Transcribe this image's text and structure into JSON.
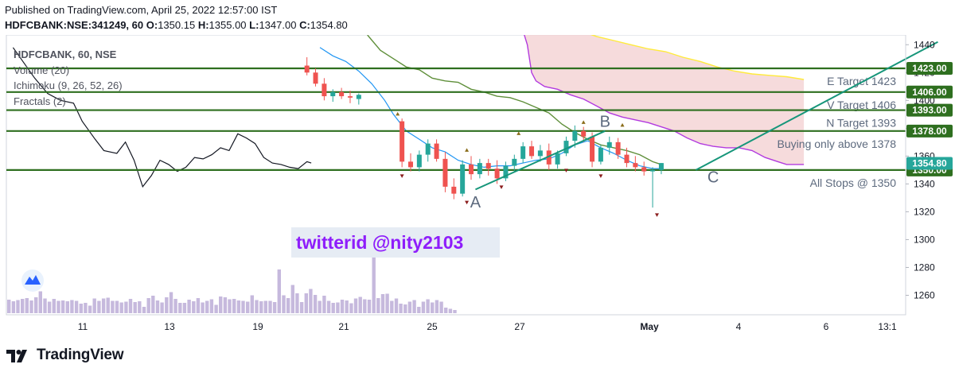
{
  "header": {
    "published": "Published on TradingView.com, April 25, 2022 12:57:00 IST",
    "symbol": "HDFCBANK:NSE:341249, 60",
    "o_label": "O:",
    "o": "1350.15",
    "h_label": "H:",
    "h": "1355.00",
    "l_label": "L:",
    "l": "1347.00",
    "c_label": "C:",
    "c": "1354.80"
  },
  "legend": {
    "title": "HDFCBANK, 60, NSE",
    "items": [
      "Volume (20)",
      "Ichimoku (9, 26, 52, 26)",
      "Fractals (2)"
    ]
  },
  "watermark": "twitterid @nity2103",
  "footer": {
    "brand": "TradingView"
  },
  "colors": {
    "up": "#26a69a",
    "down": "#ef5350",
    "hline": "#2e6f1f",
    "trend": "#16967a",
    "conversion": "#2196f3",
    "base": "#5f8f3a",
    "lagging": "#131722",
    "lead_a": "#ffeb3b",
    "lead_b": "#b23adf",
    "cloud": "#f3cfd0",
    "volume": "#c6b9dd",
    "watermark": "#8e1dfb"
  },
  "chart_data": {
    "type": "candlestick",
    "title": "HDFCBANK, 60, NSE",
    "x_ticks": [
      "11",
      "13",
      "19",
      "21",
      "25",
      "27",
      "May",
      "4",
      "6",
      "13:1"
    ],
    "y_ticks": [
      1260,
      1280,
      1300,
      1320,
      1340,
      1360,
      1380,
      1400,
      1420,
      1440
    ],
    "ylim": [
      1246,
      1447
    ],
    "last_price": 1354.8,
    "horizontal_levels": [
      {
        "price": 1423,
        "tag": "1423.00",
        "label": "E Target 1423"
      },
      {
        "price": 1406,
        "tag": "1406.00",
        "label": "V Target 1406"
      },
      {
        "price": 1393,
        "tag": "1393.00",
        "label": "N Target 1393"
      },
      {
        "price": 1378,
        "tag": "1378.00",
        "label": "Buying only above 1378"
      },
      {
        "price": 1350,
        "tag": "1350.00",
        "label": "All Stops @ 1350"
      }
    ],
    "points": [
      {
        "label": "A",
        "x": 19.8,
        "y": 1327
      },
      {
        "label": "B",
        "x": 22.8,
        "y": 1385
      },
      {
        "label": "C",
        "x": 25.3,
        "y": 1345
      }
    ],
    "trendlines": [
      {
        "x1": 19.8,
        "y1": 1336,
        "x2": 22.8,
        "y2": 1378
      },
      {
        "x1": 24.9,
        "y1": 1350,
        "x2": 30.5,
        "y2": 1442
      }
    ],
    "candles": [
      {
        "x": 15.9,
        "o": 1425,
        "h": 1431,
        "l": 1418,
        "c": 1420
      },
      {
        "x": 16.1,
        "o": 1420,
        "h": 1423,
        "l": 1410,
        "c": 1412
      },
      {
        "x": 16.3,
        "o": 1412,
        "h": 1416,
        "l": 1400,
        "c": 1403
      },
      {
        "x": 16.5,
        "o": 1403,
        "h": 1408,
        "l": 1399,
        "c": 1406
      },
      {
        "x": 16.7,
        "o": 1406,
        "h": 1409,
        "l": 1401,
        "c": 1403
      },
      {
        "x": 16.9,
        "o": 1403,
        "h": 1407,
        "l": 1398,
        "c": 1402
      },
      {
        "x": 17.1,
        "o": 1401,
        "h": 1405,
        "l": 1397,
        "c": 1404
      },
      {
        "x": 18.1,
        "o": 1385,
        "h": 1387,
        "l": 1352,
        "c": 1356
      },
      {
        "x": 18.3,
        "o": 1356,
        "h": 1362,
        "l": 1349,
        "c": 1352
      },
      {
        "x": 18.5,
        "o": 1352,
        "h": 1364,
        "l": 1349,
        "c": 1361
      },
      {
        "x": 18.7,
        "o": 1361,
        "h": 1372,
        "l": 1356,
        "c": 1369
      },
      {
        "x": 18.9,
        "o": 1369,
        "h": 1372,
        "l": 1356,
        "c": 1358
      },
      {
        "x": 19.1,
        "o": 1358,
        "h": 1363,
        "l": 1334,
        "c": 1338
      },
      {
        "x": 19.3,
        "o": 1338,
        "h": 1344,
        "l": 1329,
        "c": 1333
      },
      {
        "x": 19.5,
        "o": 1333,
        "h": 1357,
        "l": 1331,
        "c": 1354
      },
      {
        "x": 19.7,
        "o": 1354,
        "h": 1360,
        "l": 1343,
        "c": 1347
      },
      {
        "x": 19.9,
        "o": 1347,
        "h": 1358,
        "l": 1344,
        "c": 1355
      },
      {
        "x": 20.1,
        "o": 1355,
        "h": 1358,
        "l": 1346,
        "c": 1351
      },
      {
        "x": 20.3,
        "o": 1351,
        "h": 1357,
        "l": 1340,
        "c": 1344
      },
      {
        "x": 20.5,
        "o": 1344,
        "h": 1356,
        "l": 1342,
        "c": 1353
      },
      {
        "x": 20.7,
        "o": 1353,
        "h": 1361,
        "l": 1349,
        "c": 1358
      },
      {
        "x": 20.9,
        "o": 1358,
        "h": 1370,
        "l": 1355,
        "c": 1367
      },
      {
        "x": 21.1,
        "o": 1367,
        "h": 1371,
        "l": 1358,
        "c": 1360
      },
      {
        "x": 21.3,
        "o": 1360,
        "h": 1368,
        "l": 1356,
        "c": 1364
      },
      {
        "x": 21.5,
        "o": 1364,
        "h": 1369,
        "l": 1350,
        "c": 1354
      },
      {
        "x": 21.7,
        "o": 1354,
        "h": 1364,
        "l": 1351,
        "c": 1362
      },
      {
        "x": 21.9,
        "o": 1362,
        "h": 1374,
        "l": 1360,
        "c": 1371
      },
      {
        "x": 22.1,
        "o": 1371,
        "h": 1382,
        "l": 1366,
        "c": 1378
      },
      {
        "x": 22.3,
        "o": 1378,
        "h": 1381,
        "l": 1370,
        "c": 1374
      },
      {
        "x": 22.5,
        "o": 1374,
        "h": 1377,
        "l": 1352,
        "c": 1356
      },
      {
        "x": 22.7,
        "o": 1356,
        "h": 1368,
        "l": 1354,
        "c": 1366
      },
      {
        "x": 22.9,
        "o": 1366,
        "h": 1374,
        "l": 1361,
        "c": 1370
      },
      {
        "x": 23.1,
        "o": 1370,
        "h": 1373,
        "l": 1358,
        "c": 1361
      },
      {
        "x": 23.3,
        "o": 1361,
        "h": 1366,
        "l": 1352,
        "c": 1355
      },
      {
        "x": 23.5,
        "o": 1355,
        "h": 1360,
        "l": 1349,
        "c": 1352
      },
      {
        "x": 23.7,
        "o": 1352,
        "h": 1356,
        "l": 1346,
        "c": 1349
      },
      {
        "x": 23.9,
        "o": 1349,
        "h": 1352,
        "l": 1323,
        "c": 1350
      },
      {
        "x": 24.1,
        "o": 1350,
        "h": 1355,
        "l": 1347,
        "c": 1355
      }
    ],
    "fractals_up": [
      [
        18.0,
        1390
      ],
      [
        19.6,
        1364
      ],
      [
        20.8,
        1376
      ],
      [
        22.3,
        1384
      ],
      [
        23.2,
        1382
      ]
    ],
    "fractals_down": [
      [
        18.1,
        1346
      ],
      [
        19.6,
        1327
      ],
      [
        20.4,
        1338
      ],
      [
        21.9,
        1350
      ],
      [
        22.7,
        1346
      ],
      [
        24.0,
        1318
      ]
    ],
    "lagging_span": [
      [
        9.1,
        1438
      ],
      [
        9.6,
        1416
      ],
      [
        9.9,
        1405
      ],
      [
        10.2,
        1400
      ],
      [
        10.5,
        1398
      ],
      [
        10.7,
        1385
      ],
      [
        11.0,
        1372
      ],
      [
        11.2,
        1364
      ],
      [
        11.5,
        1362
      ],
      [
        11.7,
        1370
      ],
      [
        11.9,
        1357
      ],
      [
        12.1,
        1338
      ],
      [
        12.3,
        1346
      ],
      [
        12.5,
        1357
      ],
      [
        12.7,
        1354
      ],
      [
        12.9,
        1349
      ],
      [
        13.1,
        1352
      ],
      [
        13.3,
        1359
      ],
      [
        13.5,
        1358
      ],
      [
        13.7,
        1361
      ],
      [
        13.9,
        1366
      ],
      [
        14.1,
        1364
      ],
      [
        14.3,
        1376
      ],
      [
        14.5,
        1373
      ],
      [
        14.7,
        1369
      ],
      [
        14.9,
        1359
      ],
      [
        15.1,
        1355
      ],
      [
        15.3,
        1354
      ],
      [
        15.5,
        1352
      ],
      [
        15.7,
        1351
      ],
      [
        15.9,
        1356
      ],
      [
        16.0,
        1355
      ]
    ],
    "conversion_line": [
      [
        16.2,
        1438
      ],
      [
        16.5,
        1432
      ],
      [
        16.8,
        1428
      ],
      [
        17.1,
        1421
      ],
      [
        17.4,
        1412
      ],
      [
        17.7,
        1400
      ],
      [
        17.9,
        1390
      ],
      [
        18.2,
        1378
      ],
      [
        18.5,
        1372
      ],
      [
        18.8,
        1366
      ],
      [
        19.1,
        1363
      ],
      [
        19.4,
        1357
      ],
      [
        19.7,
        1354
      ],
      [
        20.0,
        1352
      ],
      [
        20.3,
        1353
      ],
      [
        20.6,
        1353
      ],
      [
        20.9,
        1355
      ],
      [
        21.2,
        1357
      ],
      [
        21.5,
        1358
      ],
      [
        21.8,
        1362
      ],
      [
        22.1,
        1368
      ],
      [
        22.4,
        1371
      ],
      [
        22.7,
        1366
      ],
      [
        23.0,
        1362
      ],
      [
        23.3,
        1357
      ],
      [
        23.6,
        1353
      ],
      [
        23.9,
        1351
      ],
      [
        24.1,
        1351
      ]
    ],
    "base_line": [
      [
        17.3,
        1447
      ],
      [
        17.6,
        1436
      ],
      [
        17.9,
        1430
      ],
      [
        18.2,
        1424
      ],
      [
        18.5,
        1422
      ],
      [
        18.8,
        1416
      ],
      [
        19.1,
        1414
      ],
      [
        19.4,
        1413
      ],
      [
        19.7,
        1408
      ],
      [
        20.0,
        1406
      ],
      [
        20.3,
        1403
      ],
      [
        20.6,
        1402
      ],
      [
        20.9,
        1399
      ],
      [
        21.2,
        1395
      ],
      [
        21.5,
        1391
      ],
      [
        21.8,
        1383
      ],
      [
        22.1,
        1377
      ],
      [
        22.4,
        1372
      ],
      [
        22.7,
        1368
      ],
      [
        23.0,
        1366
      ],
      [
        23.3,
        1364
      ],
      [
        23.6,
        1361
      ],
      [
        23.9,
        1356
      ],
      [
        24.1,
        1354
      ]
    ],
    "leading_span_a": [
      [
        22.2,
        1450
      ],
      [
        22.6,
        1446
      ],
      [
        23.0,
        1443
      ],
      [
        23.4,
        1440
      ],
      [
        23.8,
        1437
      ],
      [
        24.2,
        1435
      ],
      [
        24.6,
        1431
      ],
      [
        25.0,
        1428
      ],
      [
        25.4,
        1424
      ],
      [
        25.8,
        1421
      ],
      [
        26.2,
        1419
      ],
      [
        26.6,
        1418
      ],
      [
        27.0,
        1417
      ],
      [
        27.4,
        1415
      ]
    ],
    "leading_span_b": [
      [
        20.9,
        1450
      ],
      [
        21.0,
        1440
      ],
      [
        21.1,
        1420
      ],
      [
        21.2,
        1414
      ],
      [
        21.4,
        1410
      ],
      [
        21.7,
        1408
      ],
      [
        22.0,
        1404
      ],
      [
        22.3,
        1401
      ],
      [
        22.6,
        1396
      ],
      [
        22.9,
        1391
      ],
      [
        23.2,
        1388
      ],
      [
        23.5,
        1386
      ],
      [
        23.8,
        1384
      ],
      [
        24.1,
        1381
      ],
      [
        24.4,
        1378
      ],
      [
        24.7,
        1373
      ],
      [
        25.0,
        1369
      ],
      [
        25.3,
        1367
      ],
      [
        25.6,
        1366
      ],
      [
        25.9,
        1366
      ],
      [
        26.2,
        1364
      ],
      [
        26.5,
        1359
      ],
      [
        26.8,
        1356
      ],
      [
        27.0,
        1354
      ],
      [
        27.4,
        1354
      ]
    ],
    "volume": [
      34,
      30,
      33,
      36,
      38,
      32,
      40,
      55,
      37,
      29,
      36,
      31,
      32,
      30,
      33,
      31,
      24,
      26,
      19,
      37,
      31,
      37,
      39,
      31,
      31,
      27,
      29,
      36,
      28,
      30,
      16,
      38,
      44,
      32,
      27,
      40,
      53,
      36,
      26,
      26,
      34,
      30,
      38,
      27,
      31,
      35,
      21,
      42,
      40,
      35,
      36,
      32,
      31,
      29,
      45,
      33,
      30,
      31,
      31,
      28,
      110,
      45,
      38,
      71,
      50,
      28,
      50,
      61,
      46,
      31,
      44,
      31,
      26,
      27,
      34,
      32,
      25,
      37,
      41,
      35,
      34,
      200,
      38,
      48,
      49,
      31,
      37,
      24,
      22,
      29,
      33,
      16,
      29,
      35,
      27,
      33,
      29,
      14,
      11,
      8
    ]
  }
}
